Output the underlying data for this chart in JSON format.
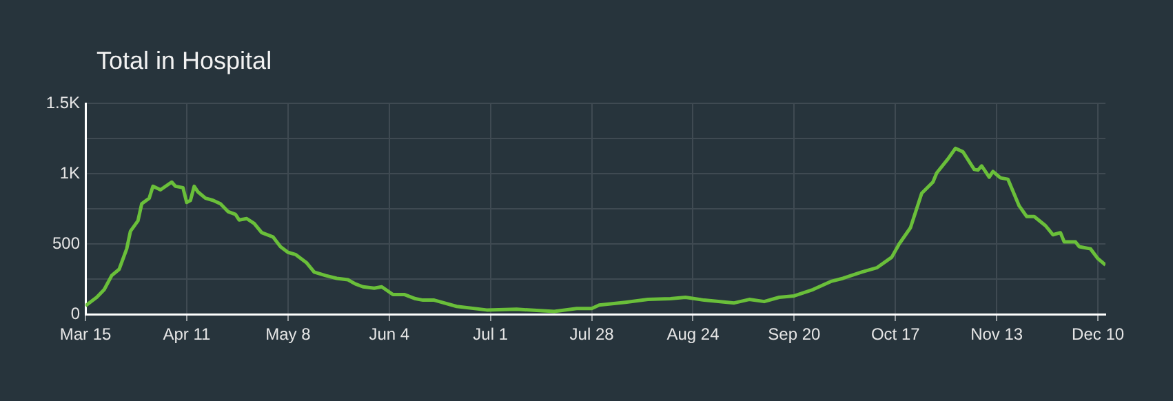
{
  "chart_data": {
    "type": "line",
    "title": "Total in Hospital",
    "x": [
      "--03-15",
      "--03-18",
      "--03-20",
      "--03-22",
      "--03-24",
      "--03-26",
      "--03-27",
      "--03-29",
      "--03-30",
      "--04-01",
      "--04-02",
      "--04-04",
      "--04-07",
      "--04-08",
      "--04-10",
      "--04-11",
      "--04-12",
      "--04-13",
      "--04-14",
      "--04-16",
      "--04-18",
      "--04-20",
      "--04-22",
      "--04-24",
      "--04-25",
      "--04-27",
      "--04-29",
      "--05-01",
      "--05-04",
      "--05-06",
      "--05-08",
      "--05-10",
      "--05-13",
      "--05-15",
      "--05-18",
      "--05-21",
      "--05-24",
      "--05-26",
      "--05-28",
      "--05-31",
      "--06-02",
      "--06-05",
      "--06-08",
      "--06-11",
      "--06-13",
      "--06-16",
      "--06-22",
      "--06-30",
      "--07-08",
      "--07-18",
      "--07-24",
      "--07-28",
      "--07-30",
      "--08-06",
      "--08-12",
      "--08-18",
      "--08-22",
      "--08-27",
      "--09-04",
      "--09-08",
      "--09-12",
      "--09-16",
      "--09-20",
      "--09-25",
      "--09-30",
      "--10-03",
      "--10-08",
      "--10-12",
      "--10-16",
      "--10-18",
      "--10-21",
      "--10-24",
      "--10-27",
      "--10-28",
      "--10-31",
      "--11-02",
      "--11-04",
      "--11-07",
      "--11-08",
      "--11-09",
      "--11-11",
      "--11-12",
      "--11-14",
      "--11-16",
      "--11-19",
      "--11-21",
      "--11-23",
      "--11-26",
      "--11-28",
      "--11-30",
      "--12-01",
      "--12-04",
      "--12-05",
      "--12-08",
      "--12-10",
      "--12-12"
    ],
    "series": [
      {
        "color": "#6abf3a",
        "values": [
          60,
          120,
          175,
          275,
          320,
          465,
          590,
          665,
          785,
          825,
          910,
          885,
          940,
          910,
          900,
          795,
          810,
          910,
          870,
          825,
          810,
          785,
          730,
          710,
          670,
          680,
          645,
          580,
          550,
          480,
          440,
          425,
          365,
          300,
          275,
          255,
          245,
          215,
          195,
          185,
          195,
          140,
          140,
          110,
          100,
          100,
          55,
          30,
          35,
          20,
          40,
          40,
          65,
          85,
          105,
          110,
          120,
          100,
          80,
          105,
          90,
          120,
          130,
          175,
          235,
          255,
          300,
          330,
          405,
          500,
          615,
          860,
          940,
          1005,
          1105,
          1180,
          1155,
          1030,
          1025,
          1055,
          975,
          1015,
          970,
          960,
          770,
          695,
          695,
          630,
          565,
          580,
          515,
          515,
          480,
          465,
          395,
          350
        ]
      }
    ],
    "xlim": [
      "--03-15",
      "--12-12"
    ],
    "xticks": [
      {
        "value": "--03-15",
        "label": "Mar 15"
      },
      {
        "value": "--04-11",
        "label": "Apr 11"
      },
      {
        "value": "--05-08",
        "label": "May 8"
      },
      {
        "value": "--06-04",
        "label": "Jun 4"
      },
      {
        "value": "--07-01",
        "label": "Jul 1"
      },
      {
        "value": "--07-28",
        "label": "Jul 28"
      },
      {
        "value": "--08-24",
        "label": "Aug 24"
      },
      {
        "value": "--09-20",
        "label": "Sep 20"
      },
      {
        "value": "--10-17",
        "label": "Oct 17"
      },
      {
        "value": "--11-13",
        "label": "Nov 13"
      },
      {
        "value": "--12-10",
        "label": "Dec 10"
      }
    ],
    "ylim": [
      0,
      1500
    ],
    "yticks": [
      0,
      {
        "value": 250,
        "label": null
      },
      500,
      {
        "value": 750,
        "label": null
      },
      {
        "value": 1000,
        "label": "1K"
      },
      {
        "value": 1250,
        "label": null
      },
      {
        "value": 1500,
        "label": "1.5K"
      }
    ],
    "grid": true,
    "legend": false,
    "marker": "none",
    "line_style": "solid"
  }
}
